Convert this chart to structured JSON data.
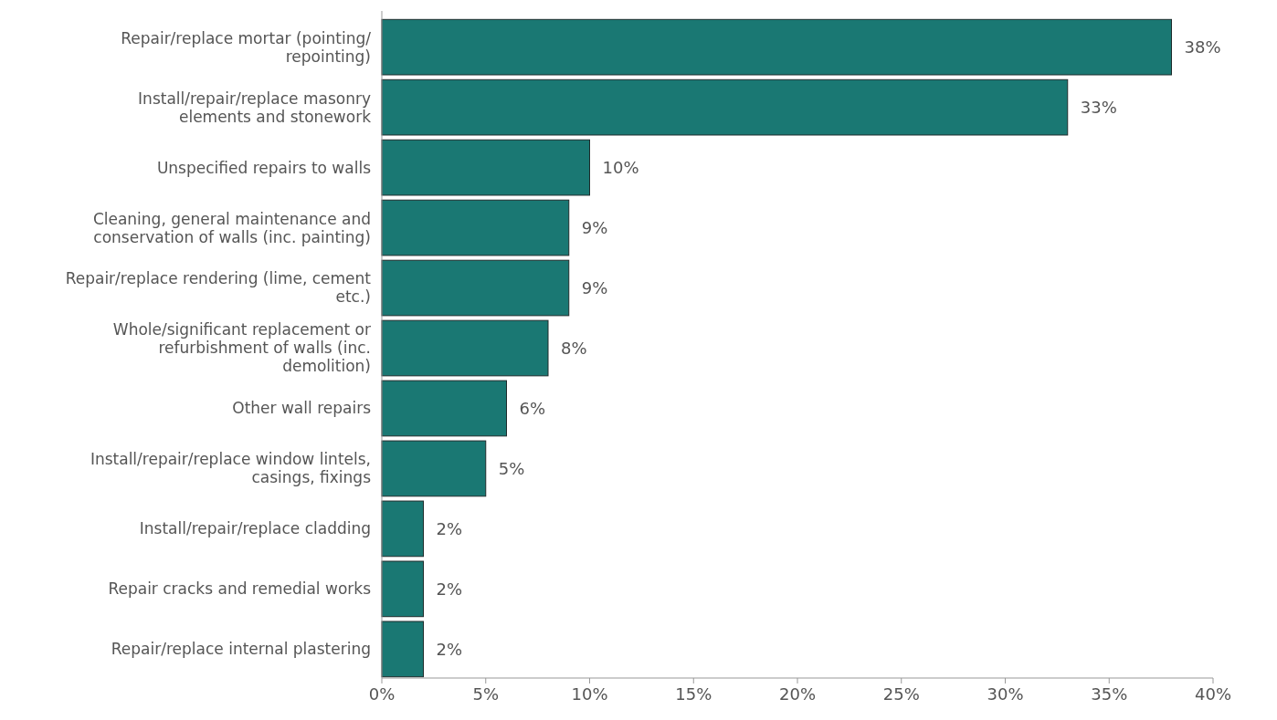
{
  "chart_data": {
    "type": "bar",
    "orientation": "horizontal",
    "categories": [
      "Repair/replace mortar (pointing/ repointing)",
      "Install/repair/replace masonry elements and stonework",
      "Unspecified repairs to walls",
      "Cleaning, general maintenance and conservation of walls (inc. painting)",
      "Repair/replace rendering (lime, cement etc.)",
      "Whole/significant replacement or refurbishment of walls (inc. demolition)",
      "Other wall repairs",
      "Install/repair/replace window lintels, casings, fixings",
      "Install/repair/replace cladding",
      "Repair cracks and remedial works",
      "Repair/replace internal plastering"
    ],
    "values": [
      38,
      33,
      10,
      9,
      9,
      8,
      6,
      5,
      2,
      2,
      2
    ],
    "value_labels": [
      "38%",
      "33%",
      "10%",
      "9%",
      "9%",
      "8%",
      "6%",
      "5%",
      "2%",
      "2%",
      "2%"
    ],
    "color": "#1a7873",
    "xlim": [
      0,
      40
    ],
    "xticks": [
      {
        "value": 0,
        "label": "0%"
      },
      {
        "value": 5,
        "label": "5%"
      },
      {
        "value": 10,
        "label": "10%"
      },
      {
        "value": 15,
        "label": "15%"
      },
      {
        "value": 20,
        "label": "20%"
      },
      {
        "value": 25,
        "label": "25%"
      },
      {
        "value": 30,
        "label": "30%"
      },
      {
        "value": 35,
        "label": "35%"
      },
      {
        "value": 40,
        "label": "40%"
      }
    ],
    "grid": false
  }
}
